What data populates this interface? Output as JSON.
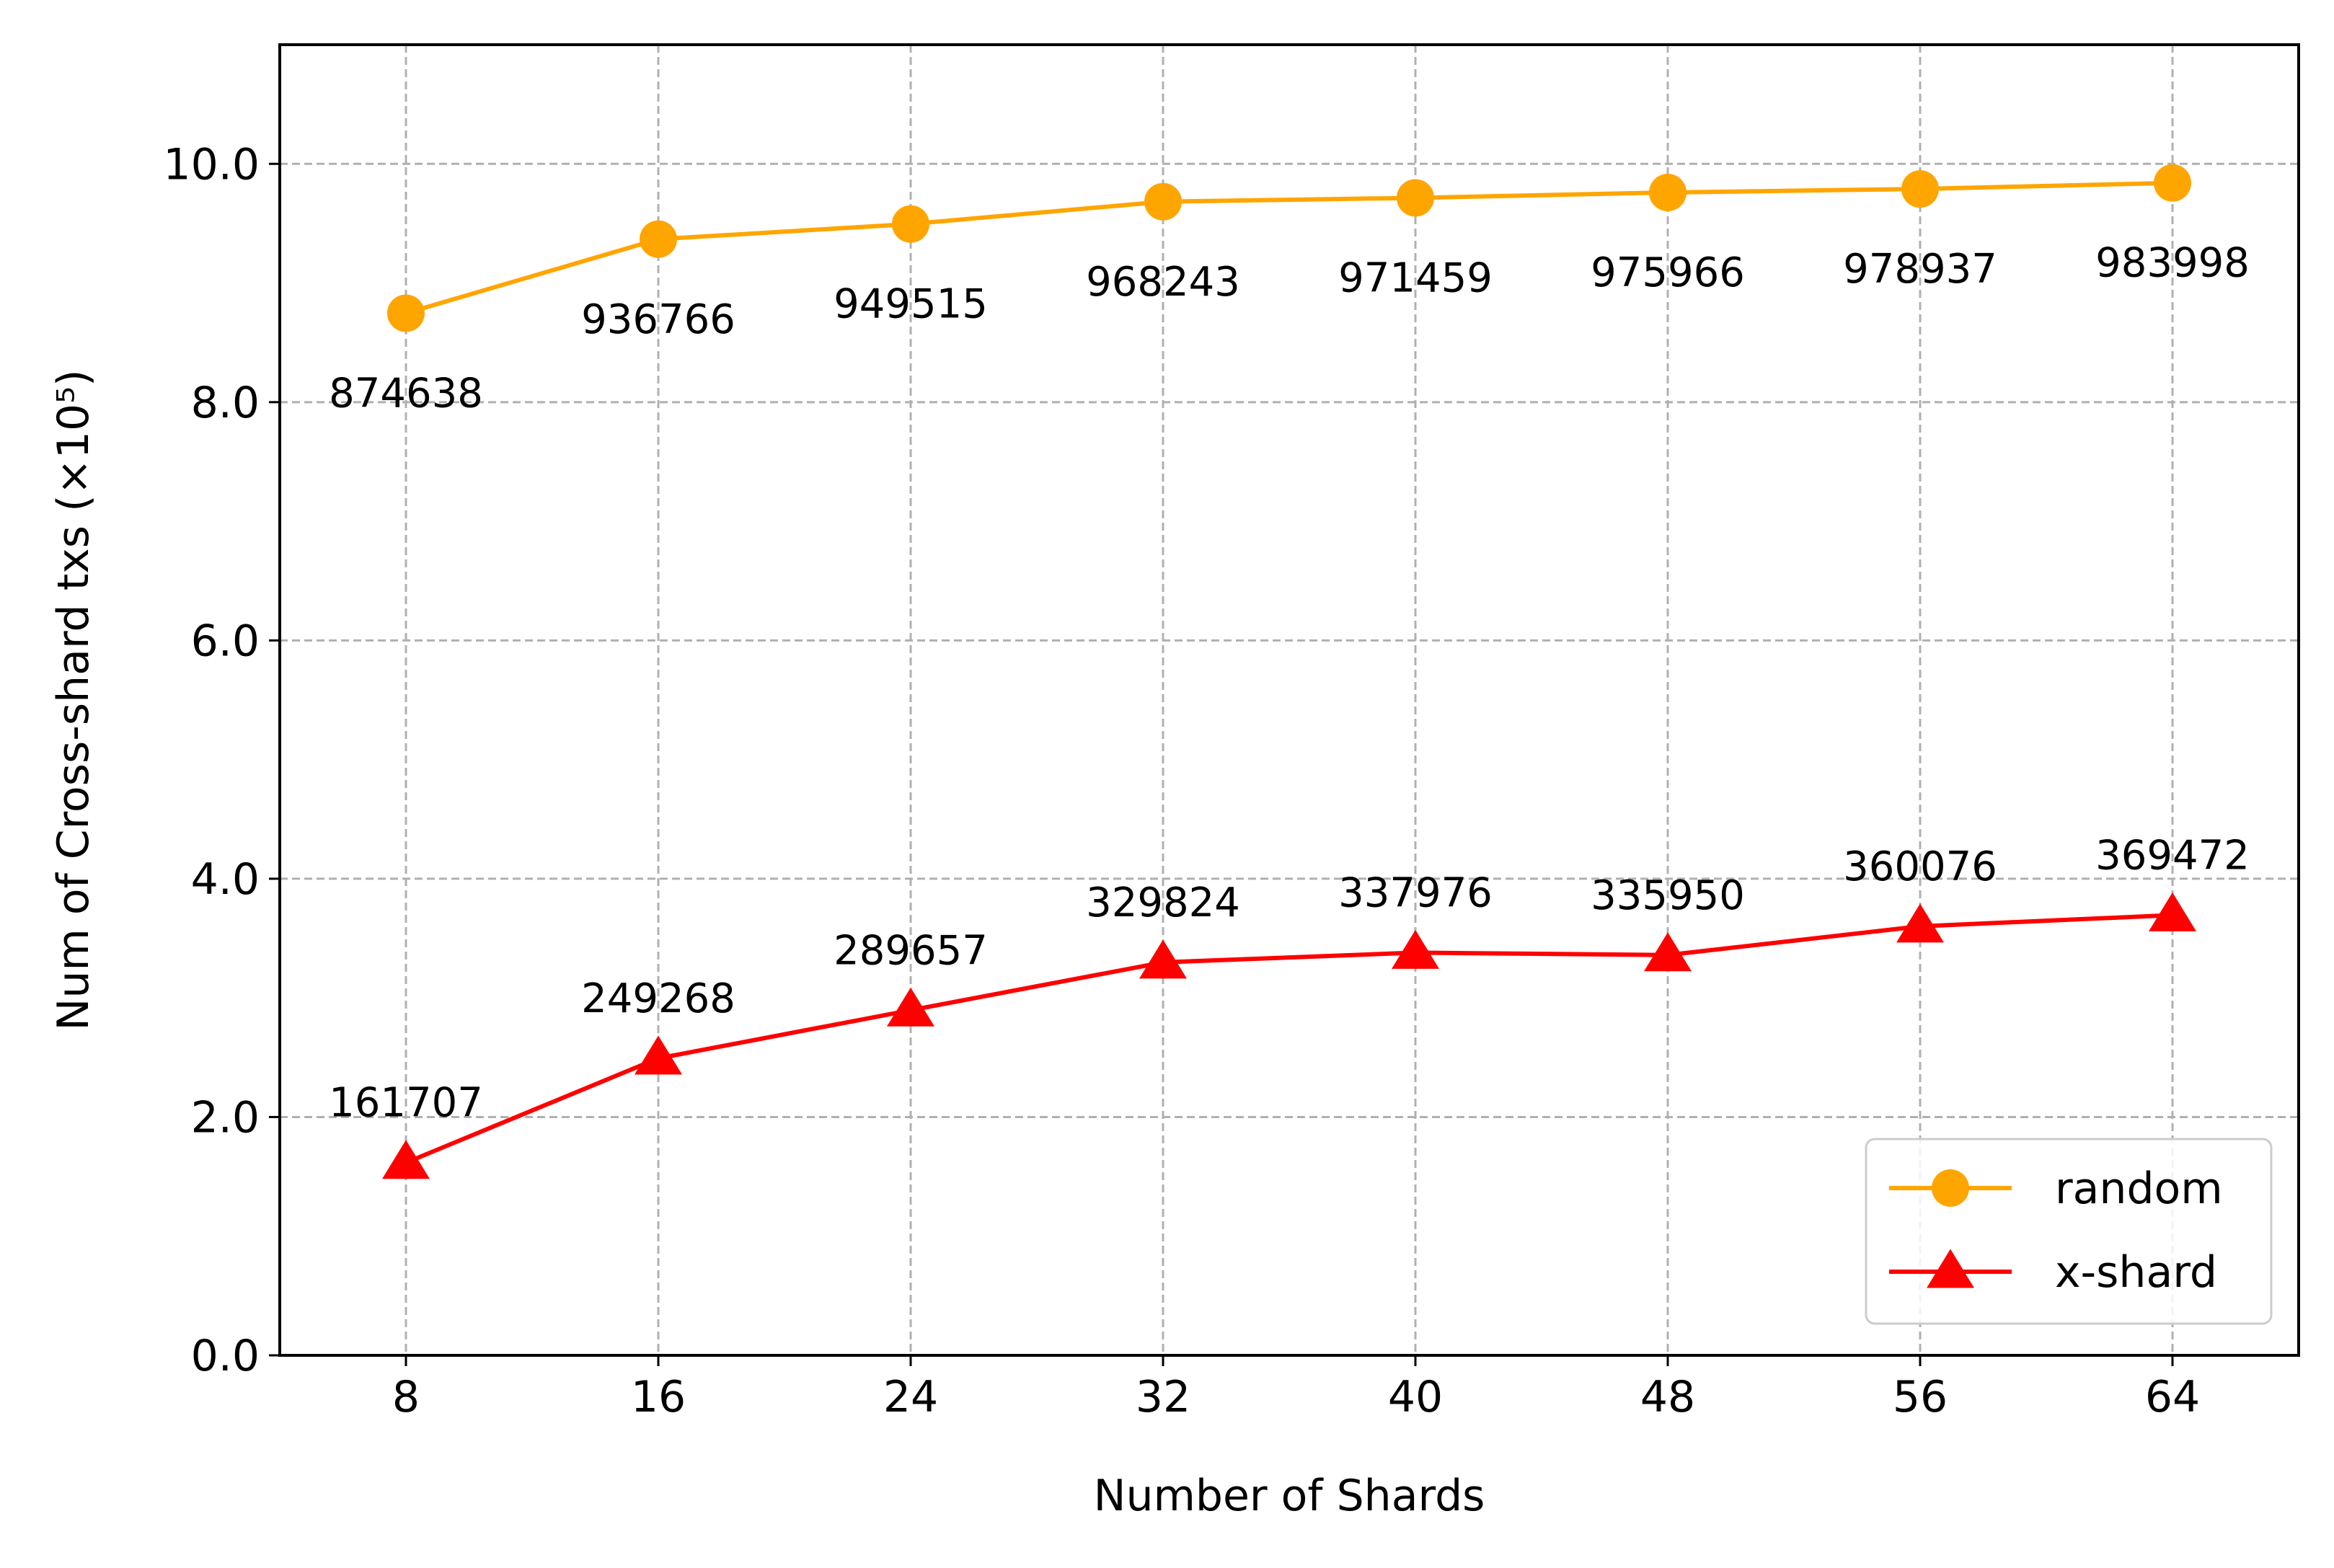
{
  "chart_data": {
    "type": "line",
    "xlabel": "Number of Shards",
    "ylabel": "Num of Cross-shard txs (×10⁵)",
    "x": [
      8,
      16,
      24,
      32,
      40,
      48,
      56,
      64
    ],
    "x_tick_labels": [
      "8",
      "16",
      "24",
      "32",
      "40",
      "48",
      "56",
      "64"
    ],
    "xlim": [
      4,
      68
    ],
    "ylim": [
      0,
      11
    ],
    "y_ticks": [
      0,
      2,
      4,
      6,
      8,
      10
    ],
    "y_tick_labels": [
      "0.0",
      "2.0",
      "4.0",
      "6.0",
      "8.0",
      "10.0"
    ],
    "grid": true,
    "legend_position": "lower-right",
    "series": [
      {
        "name": "random",
        "color": "#FFA500",
        "marker": "circle",
        "label_side": "below",
        "values": [
          8.74638,
          9.36766,
          9.49515,
          9.68243,
          9.71459,
          9.75966,
          9.78937,
          9.83998
        ],
        "labels": [
          "874638",
          "936766",
          "949515",
          "968243",
          "971459",
          "975966",
          "978937",
          "983998"
        ]
      },
      {
        "name": "x-shard",
        "color": "#FF0000",
        "marker": "triangle",
        "label_side": "above",
        "values": [
          1.61707,
          2.49268,
          2.89657,
          3.29824,
          3.37976,
          3.3595,
          3.60076,
          3.69472
        ],
        "labels": [
          "161707",
          "249268",
          "289657",
          "329824",
          "337976",
          "335950",
          "360076",
          "369472"
        ]
      }
    ]
  }
}
